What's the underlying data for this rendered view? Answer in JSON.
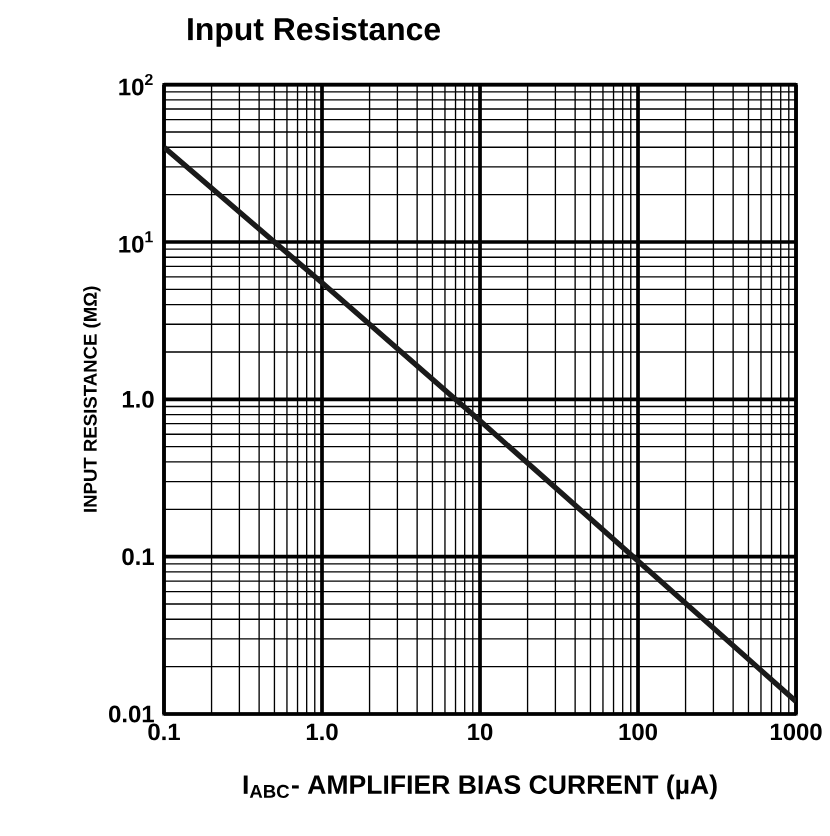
{
  "chart_data": {
    "type": "line",
    "title": "Input Resistance",
    "xlabel": "I$_{ABC}$- AMPLIFIER BIAS CURRENT (µA)",
    "ylabel": "INPUT RESISTANCE (MΩ)",
    "x": [
      0.1,
      1,
      10,
      100,
      1000
    ],
    "series": [
      {
        "color": "#1a1a1a",
        "values": [
          40,
          5.5,
          0.73,
          0.094,
          0.012
        ]
      }
    ],
    "xlim": [
      0.1,
      1000
    ],
    "ylim": [
      0.01,
      100
    ],
    "xticks": [
      {
        "value": 0.1,
        "label": "0.1"
      },
      {
        "value": 1,
        "label": "1.0"
      },
      10,
      100,
      1000
    ],
    "yticks": [
      {
        "value": 0.01,
        "label": "0.01"
      },
      {
        "value": 0.1,
        "label": "0.1"
      },
      {
        "value": 1,
        "label": "1.0"
      },
      {
        "value": 10,
        "label": "10$^{1}$"
      },
      {
        "value": 100,
        "label": "10$^{2}$"
      }
    ],
    "log": "xy",
    "grid": true,
    "marker": "none",
    "line_style": "solid"
  }
}
